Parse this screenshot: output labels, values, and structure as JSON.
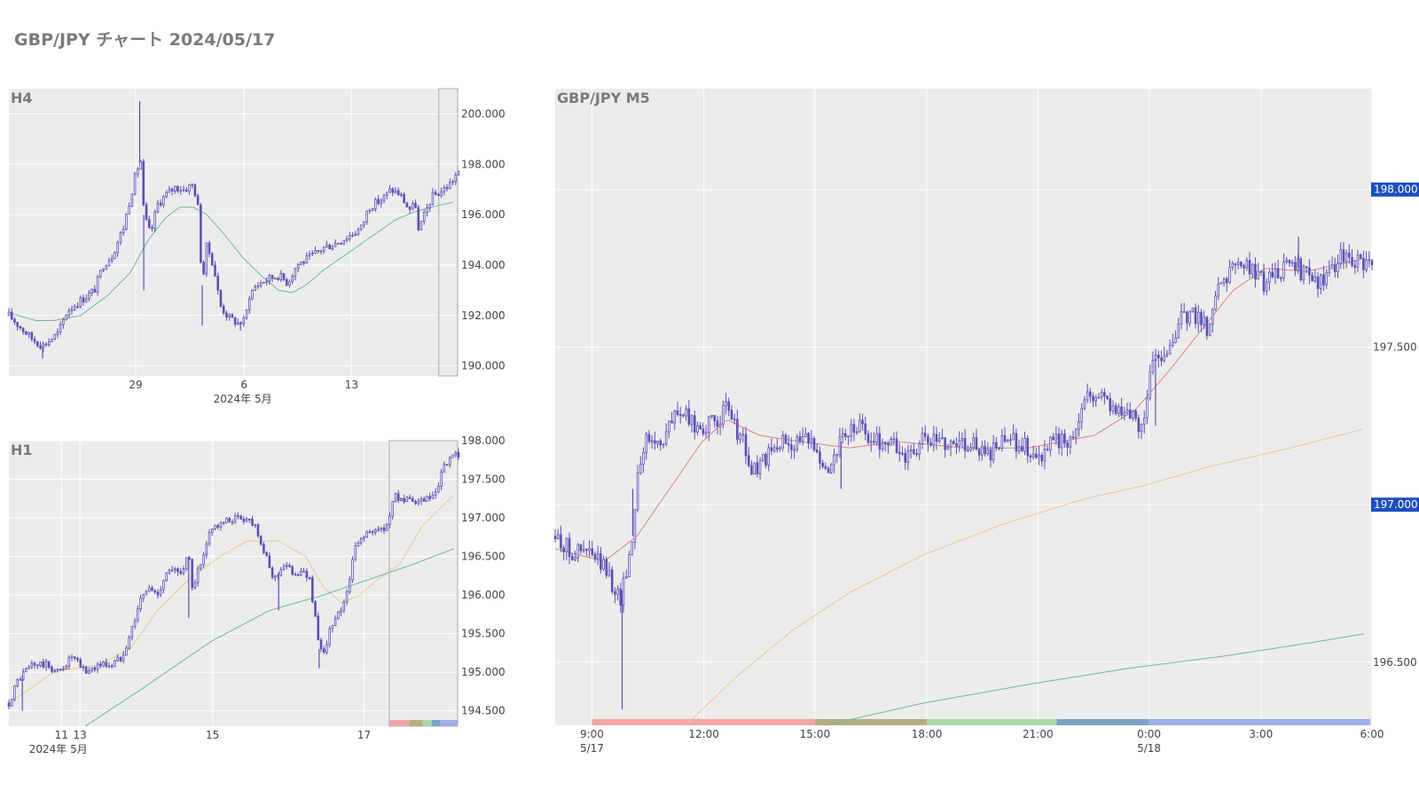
{
  "page_title": "GBP/JPY チャート 2024/05/17",
  "colors": {
    "candle": "#5a4fb5",
    "panel_bg": "#ececec",
    "price_tag": "#1d4fbf",
    "ma_short": "#e08080",
    "ma_mid": "#e8c890",
    "ma_long": "#6db89a"
  },
  "chart_data": [
    {
      "panel": "H4",
      "type": "candlestick",
      "title": "H4",
      "grid": true,
      "ylim": [
        189.6,
        201.0
      ],
      "yticks": [
        "190.000",
        "192.000",
        "194.000",
        "196.000",
        "198.000",
        "200.000"
      ],
      "ytick_values": [
        190,
        192,
        194,
        196,
        198,
        200
      ],
      "xticks": [
        "29",
        "6",
        "13"
      ],
      "xtick_positions": [
        0.282,
        0.523,
        0.762
      ],
      "xsublabel": "2024年 5月",
      "highlight_range": [
        0.956,
        0.998
      ],
      "close_path": [
        [
          0.0,
          192.0
        ],
        [
          0.05,
          191.1
        ],
        [
          0.075,
          190.8
        ],
        [
          0.11,
          191.3
        ],
        [
          0.13,
          192.2
        ],
        [
          0.16,
          192.6
        ],
        [
          0.19,
          193.0
        ],
        [
          0.21,
          194.0
        ],
        [
          0.23,
          194.4
        ],
        [
          0.255,
          195.5
        ],
        [
          0.27,
          196.7
        ],
        [
          0.285,
          197.8
        ],
        [
          0.295,
          198.2
        ],
        [
          0.3,
          196.0
        ],
        [
          0.315,
          195.2
        ],
        [
          0.33,
          196.4
        ],
        [
          0.35,
          196.8
        ],
        [
          0.37,
          197.1
        ],
        [
          0.39,
          197.0
        ],
        [
          0.41,
          197.2
        ],
        [
          0.42,
          196.4
        ],
        [
          0.43,
          193.2
        ],
        [
          0.44,
          194.8
        ],
        [
          0.455,
          194.0
        ],
        [
          0.47,
          192.4
        ],
        [
          0.49,
          191.9
        ],
        [
          0.51,
          191.7
        ],
        [
          0.525,
          191.8
        ],
        [
          0.535,
          192.8
        ],
        [
          0.55,
          193.2
        ],
        [
          0.57,
          193.4
        ],
        [
          0.6,
          193.6
        ],
        [
          0.62,
          193.3
        ],
        [
          0.64,
          194.0
        ],
        [
          0.67,
          194.3
        ],
        [
          0.7,
          194.7
        ],
        [
          0.73,
          194.9
        ],
        [
          0.76,
          195.2
        ],
        [
          0.785,
          195.5
        ],
        [
          0.8,
          196.3
        ],
        [
          0.82,
          196.5
        ],
        [
          0.835,
          196.7
        ],
        [
          0.85,
          197.0
        ],
        [
          0.87,
          196.8
        ],
        [
          0.89,
          196.2
        ],
        [
          0.905,
          196.4
        ],
        [
          0.91,
          195.3
        ],
        [
          0.925,
          196.0
        ],
        [
          0.94,
          196.7
        ],
        [
          0.96,
          196.9
        ],
        [
          0.98,
          197.2
        ],
        [
          0.995,
          197.6
        ]
      ],
      "spikes": [
        [
          0.291,
          200.5
        ],
        [
          0.3,
          193.0
        ],
        [
          0.43,
          191.6
        ],
        [
          0.515,
          191.4
        ],
        [
          0.075,
          190.3
        ]
      ],
      "ma": [
        {
          "name": "",
          "color": "green",
          "path": [
            [
              0.0,
              192.1
            ],
            [
              0.06,
              191.8
            ],
            [
              0.1,
              191.8
            ],
            [
              0.16,
              192.0
            ],
            [
              0.22,
              192.8
            ],
            [
              0.27,
              193.7
            ],
            [
              0.31,
              195.0
            ],
            [
              0.35,
              195.9
            ],
            [
              0.38,
              196.3
            ],
            [
              0.41,
              196.3
            ],
            [
              0.44,
              196.0
            ],
            [
              0.48,
              195.2
            ],
            [
              0.52,
              194.3
            ],
            [
              0.56,
              193.6
            ],
            [
              0.6,
              193.0
            ],
            [
              0.63,
              192.9
            ],
            [
              0.66,
              193.2
            ],
            [
              0.7,
              193.8
            ],
            [
              0.74,
              194.3
            ],
            [
              0.78,
              194.8
            ],
            [
              0.82,
              195.3
            ],
            [
              0.86,
              195.8
            ],
            [
              0.9,
              196.1
            ],
            [
              0.94,
              196.3
            ],
            [
              0.99,
              196.5
            ]
          ]
        }
      ]
    },
    {
      "panel": "H1",
      "type": "candlestick",
      "title": "H1",
      "grid": true,
      "ylim": [
        194.3,
        198.0
      ],
      "yticks": [
        "194.500",
        "195.000",
        "195.500",
        "196.000",
        "196.500",
        "197.000",
        "197.500",
        "198.000"
      ],
      "ytick_values": [
        194.5,
        195.0,
        195.5,
        196.0,
        196.5,
        197.0,
        197.5,
        198.0
      ],
      "xticks": [
        "11",
        "13",
        "15",
        "17"
      ],
      "xtick_positions": [
        0.117,
        0.158,
        0.453,
        0.79
      ],
      "xsublabel": "2024年 5月",
      "highlight_range": [
        0.846,
        0.998
      ],
      "close_path": [
        [
          0.0,
          194.6
        ],
        [
          0.02,
          194.9
        ],
        [
          0.05,
          195.1
        ],
        [
          0.08,
          195.1
        ],
        [
          0.11,
          195.0
        ],
        [
          0.14,
          195.2
        ],
        [
          0.17,
          195.0
        ],
        [
          0.2,
          195.1
        ],
        [
          0.23,
          195.1
        ],
        [
          0.25,
          195.2
        ],
        [
          0.27,
          195.5
        ],
        [
          0.29,
          195.9
        ],
        [
          0.31,
          196.1
        ],
        [
          0.33,
          196.0
        ],
        [
          0.35,
          196.3
        ],
        [
          0.38,
          196.3
        ],
        [
          0.4,
          196.5
        ],
        [
          0.41,
          196.0
        ],
        [
          0.42,
          196.3
        ],
        [
          0.43,
          196.4
        ],
        [
          0.45,
          196.9
        ],
        [
          0.47,
          196.9
        ],
        [
          0.5,
          197.0
        ],
        [
          0.53,
          197.0
        ],
        [
          0.55,
          196.9
        ],
        [
          0.57,
          196.5
        ],
        [
          0.59,
          196.2
        ],
        [
          0.61,
          196.4
        ],
        [
          0.63,
          196.3
        ],
        [
          0.65,
          196.3
        ],
        [
          0.67,
          196.2
        ],
        [
          0.69,
          195.3
        ],
        [
          0.7,
          195.2
        ],
        [
          0.71,
          195.5
        ],
        [
          0.73,
          195.7
        ],
        [
          0.75,
          196.0
        ],
        [
          0.77,
          196.6
        ],
        [
          0.79,
          196.8
        ],
        [
          0.81,
          196.8
        ],
        [
          0.84,
          196.9
        ],
        [
          0.86,
          197.3
        ],
        [
          0.89,
          197.2
        ],
        [
          0.92,
          197.2
        ],
        [
          0.95,
          197.3
        ],
        [
          0.97,
          197.7
        ],
        [
          0.995,
          197.8
        ]
      ],
      "spikes": [
        [
          0.4,
          195.7
        ],
        [
          0.6,
          195.8
        ],
        [
          0.69,
          195.05
        ],
        [
          0.03,
          194.5
        ]
      ],
      "ma": [
        {
          "name": "",
          "color": "yellow",
          "path": [
            [
              0.0,
              194.6
            ],
            [
              0.1,
              195.0
            ],
            [
              0.2,
              195.1
            ],
            [
              0.27,
              195.3
            ],
            [
              0.33,
              195.8
            ],
            [
              0.4,
              196.2
            ],
            [
              0.47,
              196.5
            ],
            [
              0.53,
              196.7
            ],
            [
              0.6,
              196.7
            ],
            [
              0.66,
              196.5
            ],
            [
              0.7,
              196.1
            ],
            [
              0.74,
              195.9
            ],
            [
              0.78,
              196.0
            ],
            [
              0.82,
              196.2
            ],
            [
              0.87,
              196.4
            ],
            [
              0.92,
              196.9
            ],
            [
              0.99,
              197.3
            ]
          ]
        },
        {
          "name": "",
          "color": "green",
          "path": [
            [
              0.17,
              194.3
            ],
            [
              0.3,
              194.8
            ],
            [
              0.45,
              195.4
            ],
            [
              0.58,
              195.8
            ],
            [
              0.7,
              196.0
            ],
            [
              0.8,
              196.2
            ],
            [
              0.9,
              196.4
            ],
            [
              0.99,
              196.6
            ]
          ]
        }
      ],
      "session_strip": {
        "colors": [
          "#f3a5a5",
          "#b5ad84",
          "#a9d9a9",
          "#7aa3c4",
          "#a0b0e8"
        ],
        "bounds": [
          0.846,
          0.89,
          0.92,
          0.94,
          0.96,
          0.998
        ]
      }
    },
    {
      "panel": "M5",
      "type": "candlestick",
      "title": "GBP/JPY M5",
      "grid": true,
      "ylim": [
        196.3,
        198.32
      ],
      "yticks": [
        "196.500",
        "197.000",
        "197.500",
        "198.000"
      ],
      "ytick_values": [
        196.5,
        197.0,
        197.5,
        198.0
      ],
      "price_tags": [
        "198.000",
        "197.000"
      ],
      "price_tag_values": [
        198.0,
        197.0
      ],
      "xticks": [
        "9:00",
        "12:00",
        "15:00",
        "18:00",
        "21:00",
        "0:00",
        "3:00",
        "6:00"
      ],
      "xtick_positions": [
        0.045,
        0.182,
        0.318,
        0.455,
        0.591,
        0.727,
        0.864,
        1.0
      ],
      "xsublabels": [
        "5/17",
        "5/18"
      ],
      "xsublabel_positions": [
        0.045,
        0.727
      ],
      "close_path": [
        [
          0.0,
          196.9
        ],
        [
          0.02,
          196.85
        ],
        [
          0.04,
          196.85
        ],
        [
          0.06,
          196.8
        ],
        [
          0.08,
          196.7
        ],
        [
          0.095,
          196.9
        ],
        [
          0.1,
          197.1
        ],
        [
          0.11,
          197.2
        ],
        [
          0.13,
          197.2
        ],
        [
          0.15,
          197.3
        ],
        [
          0.17,
          197.25
        ],
        [
          0.19,
          197.25
        ],
        [
          0.21,
          197.3
        ],
        [
          0.23,
          197.2
        ],
        [
          0.24,
          197.1
        ],
        [
          0.26,
          197.15
        ],
        [
          0.28,
          197.2
        ],
        [
          0.3,
          197.2
        ],
        [
          0.32,
          197.2
        ],
        [
          0.33,
          197.1
        ],
        [
          0.35,
          197.2
        ],
        [
          0.37,
          197.25
        ],
        [
          0.39,
          197.2
        ],
        [
          0.41,
          197.2
        ],
        [
          0.43,
          197.15
        ],
        [
          0.45,
          197.2
        ],
        [
          0.47,
          197.2
        ],
        [
          0.49,
          197.2
        ],
        [
          0.51,
          197.2
        ],
        [
          0.53,
          197.15
        ],
        [
          0.55,
          197.2
        ],
        [
          0.57,
          197.2
        ],
        [
          0.59,
          197.15
        ],
        [
          0.61,
          197.2
        ],
        [
          0.63,
          197.2
        ],
        [
          0.65,
          197.35
        ],
        [
          0.67,
          197.35
        ],
        [
          0.69,
          197.3
        ],
        [
          0.72,
          197.25
        ],
        [
          0.73,
          197.45
        ],
        [
          0.75,
          197.5
        ],
        [
          0.77,
          197.6
        ],
        [
          0.79,
          197.6
        ],
        [
          0.8,
          197.55
        ],
        [
          0.81,
          197.7
        ],
        [
          0.83,
          197.75
        ],
        [
          0.85,
          197.75
        ],
        [
          0.87,
          197.7
        ],
        [
          0.89,
          197.75
        ],
        [
          0.91,
          197.75
        ],
        [
          0.93,
          197.7
        ],
        [
          0.95,
          197.75
        ],
        [
          0.97,
          197.8
        ],
        [
          0.99,
          197.75
        ]
      ],
      "spikes": [
        [
          0.082,
          196.35
        ],
        [
          0.095,
          197.05
        ],
        [
          0.35,
          197.05
        ],
        [
          0.735,
          197.25
        ],
        [
          0.91,
          197.85
        ]
      ],
      "ma": [
        {
          "name": "",
          "color": "red",
          "path": [
            [
              0.0,
              196.86
            ],
            [
              0.06,
              196.82
            ],
            [
              0.1,
              196.9
            ],
            [
              0.14,
              197.05
            ],
            [
              0.18,
              197.2
            ],
            [
              0.21,
              197.27
            ],
            [
              0.25,
              197.22
            ],
            [
              0.3,
              197.2
            ],
            [
              0.36,
              197.18
            ],
            [
              0.42,
              197.2
            ],
            [
              0.5,
              197.18
            ],
            [
              0.58,
              197.18
            ],
            [
              0.66,
              197.22
            ],
            [
              0.71,
              197.3
            ],
            [
              0.75,
              197.42
            ],
            [
              0.79,
              197.55
            ],
            [
              0.83,
              197.68
            ],
            [
              0.87,
              197.75
            ],
            [
              0.92,
              197.74
            ],
            [
              0.99,
              197.78
            ]
          ]
        },
        {
          "name": "",
          "color": "yellow",
          "path": [
            [
              0.16,
              196.3
            ],
            [
              0.22,
              196.45
            ],
            [
              0.29,
              196.6
            ],
            [
              0.36,
              196.72
            ],
            [
              0.45,
              196.84
            ],
            [
              0.55,
              196.94
            ],
            [
              0.65,
              197.02
            ],
            [
              0.72,
              197.06
            ],
            [
              0.8,
              197.12
            ],
            [
              0.9,
              197.18
            ],
            [
              0.99,
              197.24
            ]
          ]
        },
        {
          "name": "",
          "color": "green",
          "path": [
            [
              0.33,
              196.3
            ],
            [
              0.45,
              196.37
            ],
            [
              0.58,
              196.43
            ],
            [
              0.7,
              196.48
            ],
            [
              0.82,
              196.52
            ],
            [
              0.92,
              196.56
            ],
            [
              0.99,
              196.59
            ]
          ]
        }
      ],
      "session_strip": {
        "colors": [
          "#f3a5a5",
          "#b5ad84",
          "#a9d9a9",
          "#7aa3c4",
          "#a0b0e8"
        ],
        "bounds": [
          0.045,
          0.318,
          0.455,
          0.614,
          0.727,
          0.998
        ]
      }
    }
  ]
}
